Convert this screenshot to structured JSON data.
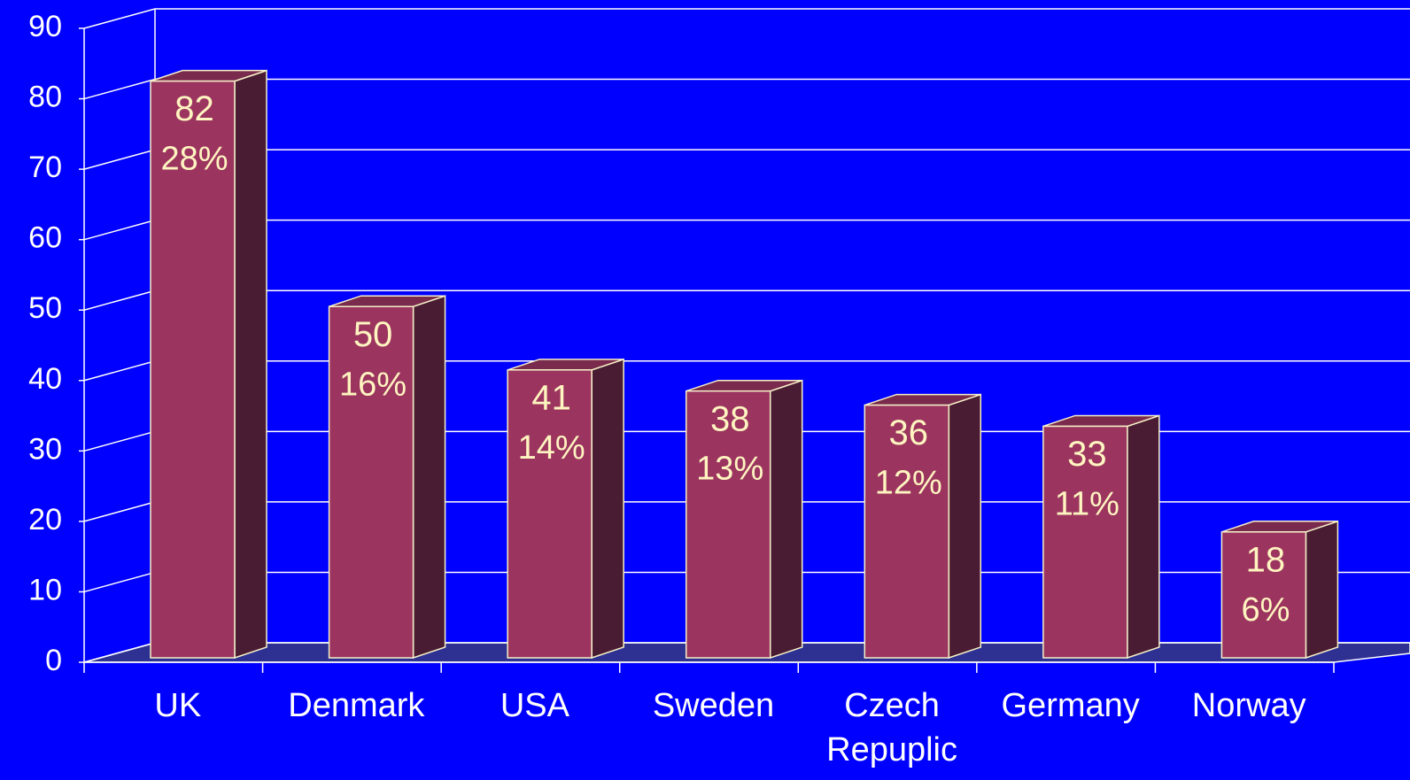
{
  "chart_data": {
    "type": "bar3d",
    "categories": [
      "UK",
      "Denmark",
      "USA",
      "Sweden",
      "Czech Repuplic",
      "Germany",
      "Norway"
    ],
    "values": [
      82,
      50,
      41,
      38,
      36,
      33,
      18
    ],
    "shares": [
      "28%",
      "16%",
      "14%",
      "13%",
      "12%",
      "11%",
      "6%"
    ],
    "color": "#9b3560",
    "ylim": [
      0,
      90
    ],
    "yticks": [
      0,
      10,
      20,
      30,
      40,
      50,
      60,
      70,
      80,
      90
    ],
    "grid": true
  }
}
